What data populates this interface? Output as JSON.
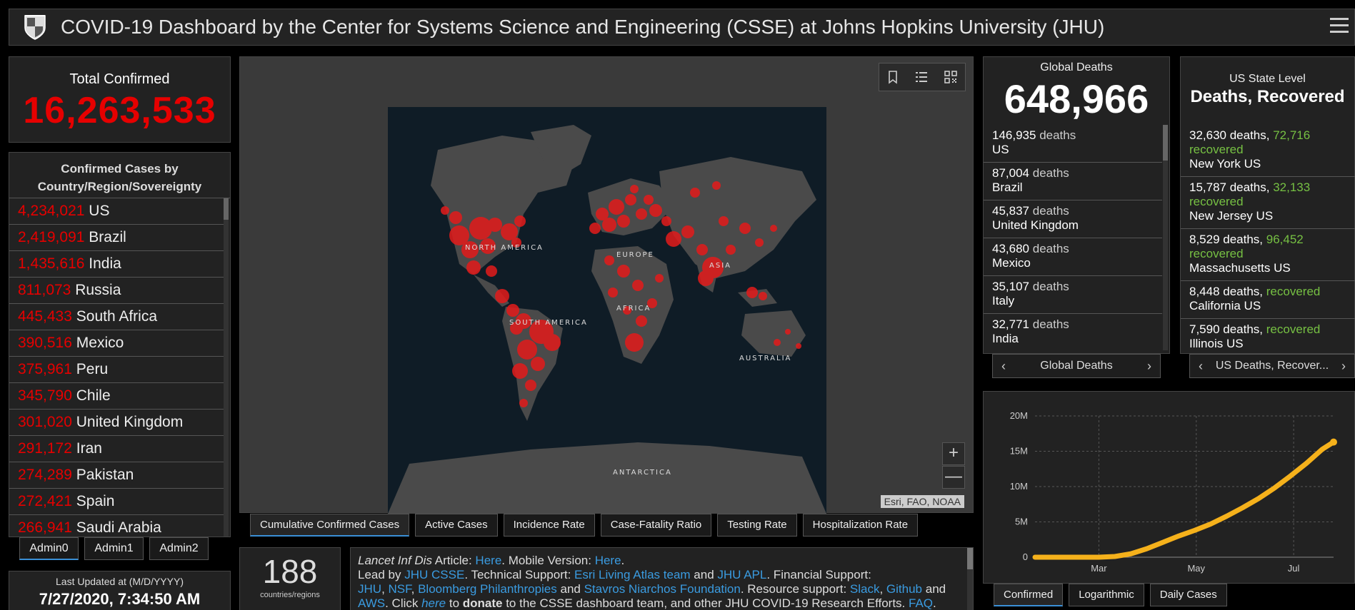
{
  "header": {
    "title": "COVID-19 Dashboard by the Center for Systems Science and Engineering (CSSE) at Johns Hopkins University (JHU)"
  },
  "total_confirmed": {
    "label": "Total Confirmed",
    "value": "16,263,533"
  },
  "countries": {
    "title_line1": "Confirmed Cases by",
    "title_line2": "Country/Region/Sovereignty",
    "rows": [
      {
        "count": "4,234,021",
        "name": "US"
      },
      {
        "count": "2,419,091",
        "name": "Brazil"
      },
      {
        "count": "1,435,616",
        "name": "India"
      },
      {
        "count": "811,073",
        "name": "Russia"
      },
      {
        "count": "445,433",
        "name": "South Africa"
      },
      {
        "count": "390,516",
        "name": "Mexico"
      },
      {
        "count": "375,961",
        "name": "Peru"
      },
      {
        "count": "345,790",
        "name": "Chile"
      },
      {
        "count": "301,020",
        "name": "United Kingdom"
      },
      {
        "count": "291,172",
        "name": "Iran"
      },
      {
        "count": "274,289",
        "name": "Pakistan"
      },
      {
        "count": "272,421",
        "name": "Spain"
      },
      {
        "count": "266,941",
        "name": "Saudi Arabia"
      }
    ]
  },
  "admin_tabs": [
    "Admin0",
    "Admin1",
    "Admin2"
  ],
  "last_updated": {
    "label": "Last Updated at (M/D/YYYY)",
    "value": "7/27/2020, 7:34:50 AM"
  },
  "map": {
    "labels": {
      "north_america": "NORTH AMERICA",
      "south_america": "SOUTH AMERICA",
      "europe": "EUROPE",
      "asia": "ASIA",
      "africa": "AFRICA",
      "australia": "AUSTRALIA",
      "antarctica": "ANTARCTICA"
    },
    "attribution": "Esri, FAO, NOAA",
    "zoom_in": "+",
    "zoom_out": "—",
    "bubble_color": "#e31b1b",
    "land_color": "#4a4a4a",
    "ocean_color": "#0f1c26"
  },
  "map_tabs": [
    "Cumulative Confirmed Cases",
    "Active Cases",
    "Incidence Rate",
    "Case-Fatality Ratio",
    "Testing Rate",
    "Hospitalization Rate"
  ],
  "countries_count": {
    "value": "188",
    "label": "countries/regions"
  },
  "info": {
    "line1_italic": "Lancet Inf Dis",
    "line1_a": " Article: ",
    "line1_link1": "Here",
    "line1_b": ". Mobile Version: ",
    "line1_link2": "Here",
    "line1_c": ".",
    "line2_a": "Lead by ",
    "line2_link1": "JHU CSSE",
    "line2_b": ". Technical Support: ",
    "line2_link2": "Esri Living Atlas team",
    "line2_c": " and ",
    "line2_link3": "JHU APL",
    "line2_d": ". Financial Support:",
    "line3_link1": "JHU",
    "line3_a": ", ",
    "line3_link2": "NSF",
    "line3_b": ", ",
    "line3_link3": "Bloomberg Philanthropies",
    "line3_c": " and ",
    "line3_link4": "Stavros Niarchos Foundation",
    "line3_d": ". Resource support: ",
    "line3_link5": "Slack",
    "line3_e": ", ",
    "line3_link6": "Github",
    "line3_f": " and",
    "line4_link1": "AWS",
    "line4_a": ". Click ",
    "line4_link2": "here",
    "line4_b": " to ",
    "line4_bold": "donate",
    "line4_c": " to the CSSE dashboard team, and other JHU COVID-19 Research Efforts. ",
    "line4_link3": "FAQ",
    "line4_d": ". Read"
  },
  "global_deaths": {
    "label": "Global Deaths",
    "value": "648,966",
    "rows": [
      {
        "count": "146,935",
        "unit": "deaths",
        "country": "US"
      },
      {
        "count": "87,004",
        "unit": "deaths",
        "country": "Brazil"
      },
      {
        "count": "45,837",
        "unit": "deaths",
        "country": "United Kingdom"
      },
      {
        "count": "43,680",
        "unit": "deaths",
        "country": "Mexico"
      },
      {
        "count": "35,107",
        "unit": "deaths",
        "country": "Italy"
      },
      {
        "count": "32,771",
        "unit": "deaths",
        "country": "India"
      }
    ],
    "pager_label": "Global Deaths"
  },
  "us_state": {
    "label": "US State Level",
    "title": "Deaths, Recovered",
    "rows": [
      {
        "deaths": "32,630 deaths,",
        "recovered_num": "72,716",
        "recovered": "recovered",
        "state": "New York",
        "country": "US"
      },
      {
        "deaths": "15,787 deaths,",
        "recovered_num": "32,133",
        "recovered": "recovered",
        "state": "New Jersey",
        "country": "US"
      },
      {
        "deaths": "8,529 deaths,",
        "recovered_num": "96,452",
        "recovered": "recovered",
        "state": "Massachusetts",
        "country": "US"
      },
      {
        "deaths": "8,448 deaths,",
        "recovered_num": "",
        "recovered": "recovered",
        "state": "California",
        "country": "US"
      },
      {
        "deaths": "7,590 deaths,",
        "recovered_num": "",
        "recovered": "recovered",
        "state": "Illinois",
        "country": "US"
      }
    ],
    "pager_label": "US Deaths, Recover..."
  },
  "chart_data": {
    "type": "line",
    "x_ticks": [
      "Mar",
      "May",
      "Jul"
    ],
    "y_ticks": [
      "0",
      "5M",
      "10M",
      "15M",
      "20M"
    ],
    "ylim": [
      0,
      20000000
    ],
    "line_color": "#f5b11b",
    "grid": true,
    "x": [
      0,
      10,
      20,
      30,
      40,
      50,
      60,
      70,
      80,
      90,
      100,
      110,
      120,
      130,
      140,
      150,
      160,
      170,
      180,
      187
    ],
    "values": [
      0,
      0,
      0,
      0,
      0,
      100000,
      480000,
      1200000,
      2100000,
      3000000,
      3800000,
      4700000,
      5800000,
      7000000,
      8300000,
      9800000,
      11500000,
      13300000,
      15300000,
      16300000
    ],
    "x_tick_positions": [
      40,
      101,
      162
    ]
  },
  "chart_tabs": [
    "Confirmed",
    "Logarithmic",
    "Daily Cases"
  ]
}
